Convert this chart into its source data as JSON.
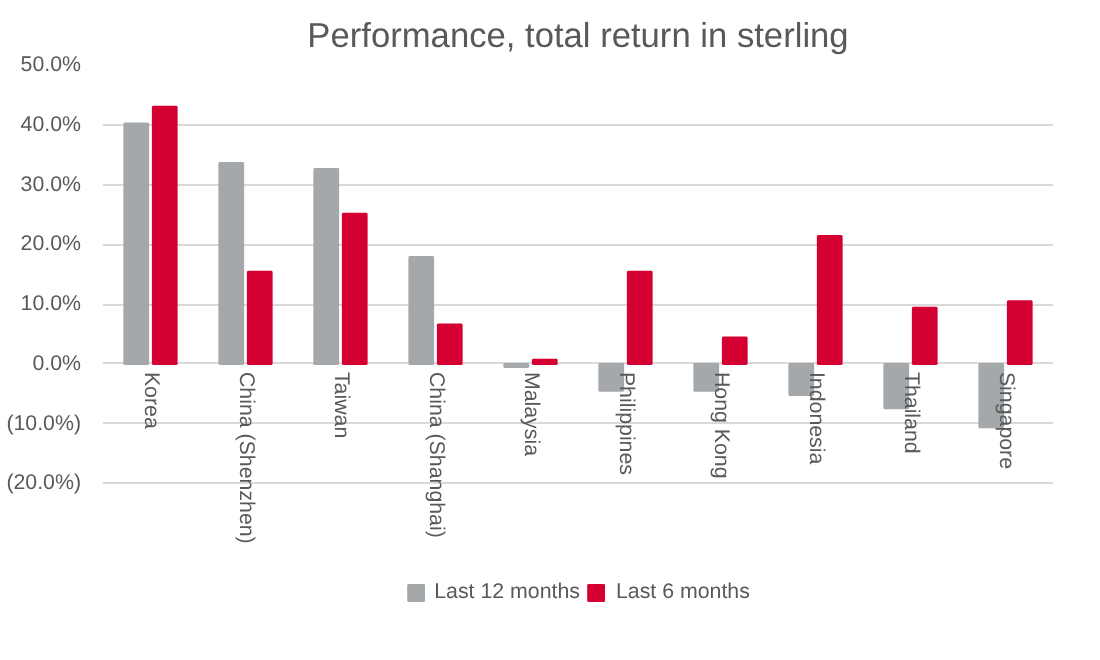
{
  "chart_data": {
    "type": "bar",
    "title": "Performance, total return in sterling",
    "categories": [
      "Korea",
      "China (Shenzhen)",
      "Taiwan",
      "China (Shanghai)",
      "Malaysia",
      "Philippines",
      "Hong Kong",
      "Indonesia",
      "Thailand",
      "Singapore"
    ],
    "series": [
      {
        "name": "Last 12 months",
        "color": "#a5a8aa",
        "values": [
          40.2,
          33.6,
          32.6,
          17.9,
          -0.5,
          -4.5,
          -4.5,
          -5.2,
          -7.4,
          -10.6
        ]
      },
      {
        "name": "Last 6 months",
        "color": "#d50032",
        "values": [
          43.0,
          15.4,
          25.1,
          6.6,
          0.7,
          15.4,
          4.4,
          21.4,
          9.4,
          10.5
        ]
      }
    ],
    "ylim": [
      -20,
      50
    ],
    "yticks": [
      {
        "value": -20,
        "label": "(20.0%)"
      },
      {
        "value": -10,
        "label": "(10.0%)"
      },
      {
        "value": 0,
        "label": "0.0%"
      },
      {
        "value": 10,
        "label": "10.0%"
      },
      {
        "value": 20,
        "label": "20.0%"
      },
      {
        "value": 30,
        "label": "30.0%"
      },
      {
        "value": 40,
        "label": "40.0%"
      },
      {
        "value": 50,
        "label": "50.0%"
      }
    ],
    "grid": "y",
    "legend": "bottom"
  }
}
